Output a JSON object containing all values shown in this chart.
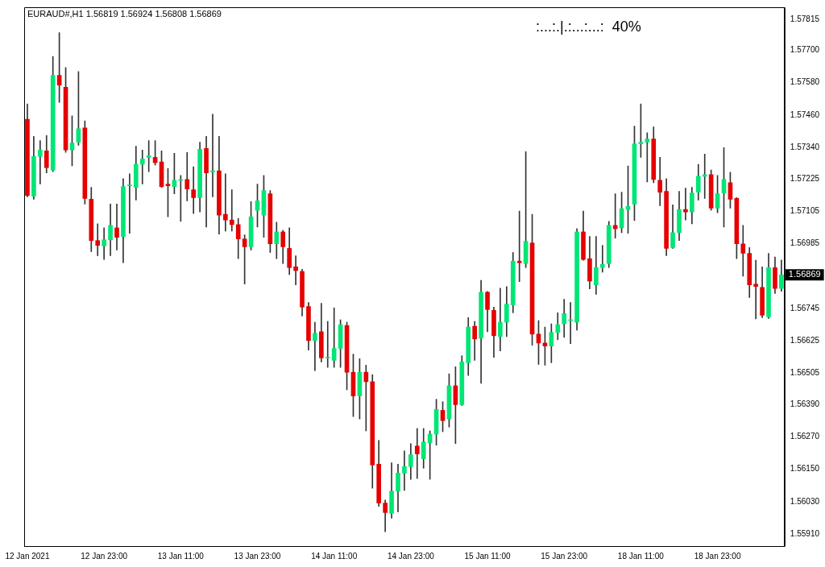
{
  "chart_data": {
    "type": "candlestick",
    "title": "EURAUD#,H1 1.56819 1.56924 1.56808 1.56869",
    "annotations": [
      ":...:.|.:...:...:  40%",
      "1.56869"
    ],
    "categories": [
      "12 Jan 2021",
      null,
      null,
      null,
      null,
      null,
      null,
      null,
      null,
      null,
      null,
      null,
      "12 Jan 23:00",
      null,
      null,
      null,
      null,
      null,
      null,
      null,
      null,
      null,
      null,
      null,
      "13 Jan 11:00",
      null,
      null,
      null,
      null,
      null,
      null,
      null,
      null,
      null,
      null,
      null,
      "13 Jan 23:00",
      null,
      null,
      null,
      null,
      null,
      null,
      null,
      null,
      null,
      null,
      null,
      "14 Jan 11:00",
      null,
      null,
      null,
      null,
      null,
      null,
      null,
      null,
      null,
      null,
      null,
      "14 Jan 23:00",
      null,
      null,
      null,
      null,
      null,
      null,
      null,
      null,
      null,
      null,
      null,
      "15 Jan 11:00",
      null,
      null,
      null,
      null,
      null,
      null,
      null,
      null,
      null,
      null,
      null,
      "15 Jan 23:00",
      null,
      null,
      null,
      null,
      null,
      null,
      null,
      null,
      null,
      null,
      null,
      "18 Jan 11:00",
      null,
      null,
      null,
      null,
      null,
      null,
      null,
      null,
      null,
      null,
      null,
      "18 Jan 23:00",
      null,
      null,
      null,
      null,
      null,
      null,
      null,
      null,
      null,
      null
    ],
    "ohlc": [
      [
        1.57445,
        1.57501,
        1.57158,
        1.57163
      ],
      [
        1.5716,
        1.57381,
        1.57149,
        1.57307
      ],
      [
        1.57307,
        1.57366,
        1.57205,
        1.57331
      ],
      [
        1.57328,
        1.57384,
        1.57246,
        1.57266
      ],
      [
        1.57257,
        1.57677,
        1.57251,
        1.57607
      ],
      [
        1.57607,
        1.57765,
        1.57507,
        1.57571
      ],
      [
        1.57563,
        1.57636,
        1.57322,
        1.57331
      ],
      [
        1.57331,
        1.57457,
        1.57272,
        1.57357
      ],
      [
        1.5736,
        1.57621,
        1.57348,
        1.5741
      ],
      [
        1.57413,
        1.57439,
        1.57131,
        1.57152
      ],
      [
        1.57149,
        1.57193,
        1.56955,
        1.56996
      ],
      [
        1.56996,
        1.57058,
        1.5694,
        1.56978
      ],
      [
        1.56976,
        1.57043,
        1.56926,
        1.56999
      ],
      [
        1.56999,
        1.57131,
        1.5694,
        1.57052
      ],
      [
        1.57043,
        1.57131,
        1.56961,
        1.57008
      ],
      [
        1.57011,
        1.57225,
        1.56914,
        1.57196
      ],
      [
        1.57199,
        1.57243,
        1.57023,
        1.57199
      ],
      [
        1.57193,
        1.57345,
        1.57146,
        1.57278
      ],
      [
        1.57278,
        1.57331,
        1.57205,
        1.57298
      ],
      [
        1.57304,
        1.57366,
        1.57251,
        1.5731
      ],
      [
        1.57304,
        1.57366,
        1.57275,
        1.57284
      ],
      [
        1.57287,
        1.57328,
        1.57193,
        1.57196
      ],
      [
        1.57205,
        1.57263,
        1.57084,
        1.57199
      ],
      [
        1.57196,
        1.57319,
        1.57169,
        1.57219
      ],
      [
        1.57219,
        1.57237,
        1.57067,
        1.57219
      ],
      [
        1.57222,
        1.57322,
        1.57143,
        1.57187
      ],
      [
        1.57184,
        1.57269,
        1.57096,
        1.57155
      ],
      [
        1.57155,
        1.5736,
        1.57102,
        1.57334
      ],
      [
        1.57337,
        1.57381,
        1.57046,
        1.57246
      ],
      [
        1.57249,
        1.57463,
        1.57158,
        1.57254
      ],
      [
        1.57254,
        1.57381,
        1.5702,
        1.5709
      ],
      [
        1.57093,
        1.57243,
        1.57031,
        1.57072
      ],
      [
        1.57072,
        1.57184,
        1.57031,
        1.57055
      ],
      [
        1.57055,
        1.57078,
        1.56929,
        1.57002
      ],
      [
        1.57002,
        1.57017,
        1.56835,
        1.56973
      ],
      [
        1.56973,
        1.5714,
        1.56961,
        1.57084
      ],
      [
        1.57108,
        1.57205,
        1.57046,
        1.57143
      ],
      [
        1.5709,
        1.57237,
        1.57008,
        1.57181
      ],
      [
        1.57169,
        1.57181,
        1.56952,
        1.56984
      ],
      [
        1.56984,
        1.57064,
        1.56929,
        1.57028
      ],
      [
        1.57028,
        1.57034,
        1.56911,
        1.56973
      ],
      [
        1.56967,
        1.57043,
        1.5687,
        1.56896
      ],
      [
        1.56899,
        1.5694,
        1.56832,
        1.56885
      ],
      [
        1.56882,
        1.5689,
        1.56717,
        1.5675
      ],
      [
        1.56752,
        1.56767,
        1.56591,
        1.56626
      ],
      [
        1.56626,
        1.56694,
        1.56515,
        1.56653
      ],
      [
        1.56659,
        1.56764,
        1.56547,
        1.56562
      ],
      [
        1.56562,
        1.56697,
        1.56527,
        1.56562
      ],
      [
        1.56553,
        1.56747,
        1.56527,
        1.56597
      ],
      [
        1.56597,
        1.56703,
        1.56527,
        1.56685
      ],
      [
        1.56682,
        1.56694,
        1.56444,
        1.56509
      ],
      [
        1.56509,
        1.56576,
        1.56345,
        1.56421
      ],
      [
        1.56421,
        1.56559,
        1.56336,
        1.56509
      ],
      [
        1.56509,
        1.56535,
        1.56292,
        1.56474
      ],
      [
        1.56474,
        1.565,
        1.5608,
        1.56166
      ],
      [
        1.56169,
        1.56257,
        1.56013,
        1.56025
      ],
      [
        1.56025,
        1.56036,
        1.55919,
        1.5599
      ],
      [
        1.55987,
        1.56174,
        1.55969,
        1.56069
      ],
      [
        1.56069,
        1.56169,
        1.55992,
        1.56136
      ],
      [
        1.56136,
        1.56218,
        1.56072,
        1.5616
      ],
      [
        1.5616,
        1.56245,
        1.56113,
        1.56204
      ],
      [
        1.56236,
        1.56301,
        1.56116,
        1.56207
      ],
      [
        1.56189,
        1.56301,
        1.56154,
        1.56251
      ],
      [
        1.56248,
        1.56292,
        1.56113,
        1.5628
      ],
      [
        1.5628,
        1.56409,
        1.56239,
        1.56371
      ],
      [
        1.56368,
        1.564,
        1.56289,
        1.5633
      ],
      [
        1.56336,
        1.56503,
        1.56306,
        1.56459
      ],
      [
        1.56459,
        1.56529,
        1.56245,
        1.56389
      ],
      [
        1.56389,
        1.5657,
        1.56386,
        1.56547
      ],
      [
        1.56544,
        1.56711,
        1.56497,
        1.56676
      ],
      [
        1.56679,
        1.56697,
        1.56553,
        1.56632
      ],
      [
        1.56635,
        1.56849,
        1.56468,
        1.56805
      ],
      [
        1.56805,
        1.56808,
        1.56659,
        1.56741
      ],
      [
        1.56738,
        1.5675,
        1.56564,
        1.56644
      ],
      [
        1.56641,
        1.5682,
        1.56588,
        1.56694
      ],
      [
        1.56694,
        1.56826,
        1.56641,
        1.56761
      ],
      [
        1.56758,
        1.56952,
        1.56729,
        1.5692
      ],
      [
        1.5692,
        1.57105,
        1.56844,
        1.56914
      ],
      [
        1.56911,
        1.57325,
        1.56896,
        1.56993
      ],
      [
        1.56987,
        1.57093,
        1.56609,
        1.5665
      ],
      [
        1.5665,
        1.567,
        1.56538,
        1.56617
      ],
      [
        1.56617,
        1.56676,
        1.56535,
        1.56606
      ],
      [
        1.56606,
        1.56688,
        1.56544,
        1.56656
      ],
      [
        1.56656,
        1.56729,
        1.56629,
        1.56685
      ],
      [
        1.56688,
        1.56779,
        1.56638,
        1.56726
      ],
      [
        1.567,
        1.56767,
        1.56615,
        1.567
      ],
      [
        1.56694,
        1.5704,
        1.56665,
        1.57028
      ],
      [
        1.57028,
        1.57105,
        1.56923,
        1.56926
      ],
      [
        1.56929,
        1.57011,
        1.56817,
        1.56846
      ],
      [
        1.56832,
        1.57011,
        1.56797,
        1.56896
      ],
      [
        1.56896,
        1.56978,
        1.56879,
        1.56908
      ],
      [
        1.56911,
        1.57067,
        1.56896,
        1.57052
      ],
      [
        1.57052,
        1.57169,
        1.57005,
        1.5704
      ],
      [
        1.57043,
        1.57175,
        1.57025,
        1.57114
      ],
      [
        1.57111,
        1.57272,
        1.57023,
        1.57122
      ],
      [
        1.57131,
        1.57419,
        1.5707,
        1.57354
      ],
      [
        1.57354,
        1.57501,
        1.57304,
        1.5736
      ],
      [
        1.5736,
        1.57395,
        1.57213,
        1.57372
      ],
      [
        1.57372,
        1.57416,
        1.5721,
        1.57222
      ],
      [
        1.57219,
        1.57304,
        1.57125,
        1.57175
      ],
      [
        1.57178,
        1.57225,
        1.5694,
        1.56967
      ],
      [
        1.5697,
        1.57128,
        1.56967,
        1.57025
      ],
      [
        1.57025,
        1.57178,
        1.56996,
        1.57111
      ],
      [
        1.57111,
        1.5719,
        1.57072,
        1.57102
      ],
      [
        1.57102,
        1.57193,
        1.57058,
        1.57172
      ],
      [
        1.57175,
        1.57278,
        1.57146,
        1.57234
      ],
      [
        1.57234,
        1.57316,
        1.57152,
        1.5724
      ],
      [
        1.5724,
        1.57257,
        1.57108,
        1.57116
      ],
      [
        1.57116,
        1.57237,
        1.57099,
        1.57169
      ],
      [
        1.57172,
        1.5734,
        1.57046,
        1.57222
      ],
      [
        1.5721,
        1.57249,
        1.57116,
        1.57149
      ],
      [
        1.57152,
        1.57155,
        1.56929,
        1.56984
      ],
      [
        1.56984,
        1.57052,
        1.56864,
        1.56949
      ],
      [
        1.56949,
        1.5697,
        1.56785,
        1.56832
      ],
      [
        1.56835,
        1.56923,
        1.56706,
        1.56826
      ],
      [
        1.56823,
        1.56899,
        1.56711,
        1.5672
      ],
      [
        1.56714,
        1.56949,
        1.56708,
        1.56896
      ],
      [
        1.56896,
        1.56935,
        1.568,
        1.56819
      ],
      [
        1.56819,
        1.56924,
        1.56808,
        1.56869
      ]
    ],
    "colors": [
      "#e60000",
      "#00e676",
      "#00e676",
      "#e60000",
      "#00e676",
      "#e60000",
      "#e60000",
      "#00e676",
      "#00e676",
      "#e60000",
      "#e60000",
      "#e60000",
      "#00e676",
      "#00e676",
      "#e60000",
      "#00e676",
      "#00e676",
      "#00e676",
      "#00e676",
      "#00e676",
      "#e60000",
      "#e60000",
      "#e60000",
      "#00e676",
      "#00e676",
      "#e60000",
      "#e60000",
      "#00e676",
      "#e60000",
      "#00e676",
      "#e60000",
      "#e60000",
      "#e60000",
      "#e60000",
      "#e60000",
      "#00e676",
      "#00e676",
      "#00e676",
      "#e60000",
      "#00e676",
      "#e60000",
      "#e60000",
      "#e60000",
      "#e60000",
      "#e60000",
      "#00e676",
      "#e60000",
      "#00e676",
      "#00e676",
      "#00e676",
      "#e60000",
      "#e60000",
      "#00e676",
      "#e60000",
      "#e60000",
      "#e60000",
      "#e60000",
      "#00e676",
      "#00e676",
      "#00e676",
      "#00e676",
      "#e60000",
      "#00e676",
      "#00e676",
      "#00e676",
      "#e60000",
      "#00e676",
      "#e60000",
      "#00e676",
      "#00e676",
      "#e60000",
      "#00e676",
      "#e60000",
      "#e60000",
      "#00e676",
      "#00e676",
      "#00e676",
      "#e60000",
      "#00e676",
      "#e60000",
      "#e60000",
      "#e60000",
      "#00e676",
      "#00e676",
      "#00e676",
      "#00e676",
      "#00e676",
      "#e60000",
      "#e60000",
      "#00e676",
      "#00e676",
      "#00e676",
      "#e60000",
      "#00e676",
      "#00e676",
      "#00e676",
      "#00e676",
      "#00e676",
      "#e60000",
      "#e60000",
      "#e60000",
      "#00e676",
      "#00e676",
      "#e60000",
      "#00e676",
      "#00e676",
      "#00e676",
      "#e60000",
      "#00e676",
      "#00e676",
      "#e60000",
      "#e60000",
      "#e60000",
      "#e60000",
      "#e60000",
      "#e60000",
      "#00e676",
      "#e60000",
      "#00e676"
    ],
    "ylim": [
      1.55866,
      1.57859
    ],
    "yticks": [
      1.57815,
      {
        "value": 1.577,
        "label": "1.57700"
      },
      {
        "value": 1.5758,
        "label": "1.57580"
      },
      {
        "value": 1.5746,
        "label": "1.57460"
      },
      {
        "value": 1.5734,
        "label": "1.57340"
      },
      1.57225,
      1.57105,
      1.56985,
      1.56745,
      1.56625,
      1.56505,
      {
        "value": 1.5639,
        "label": "1.56390"
      },
      {
        "value": 1.5627,
        "label": "1.56270"
      },
      {
        "value": 1.5615,
        "label": "1.56150"
      },
      {
        "value": 1.5603,
        "label": "1.56030"
      },
      {
        "value": 1.5591,
        "label": "1.55910"
      }
    ],
    "grid": false,
    "legend": false
  }
}
